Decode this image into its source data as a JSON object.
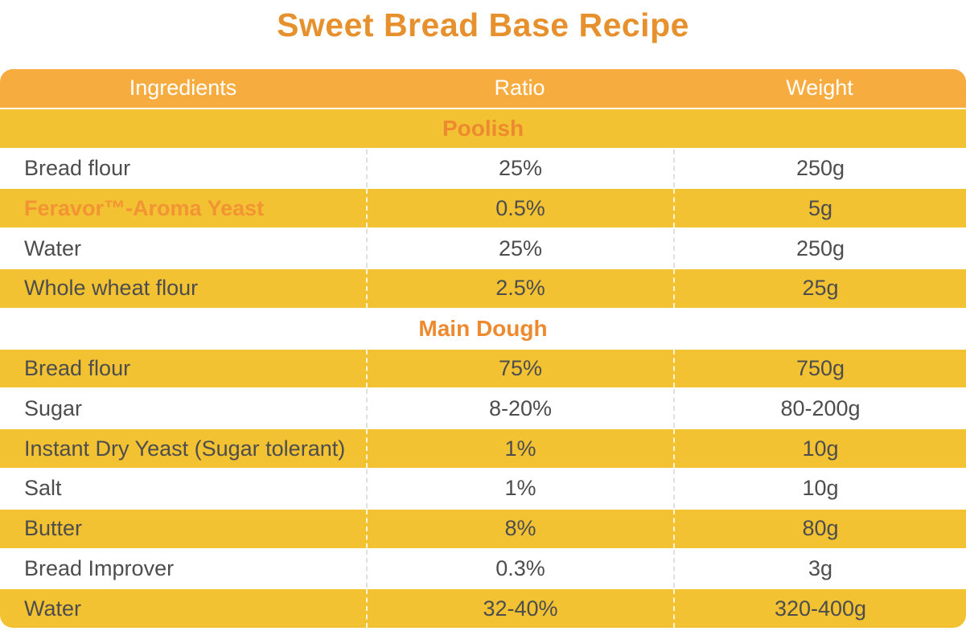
{
  "title": "Sweet Bread Base Recipe",
  "colors": {
    "header_bg": "#F7AC40",
    "row_yellow": "#F2C233",
    "row_white": "#FFFFFF",
    "title_orange": "#E6912E",
    "section_orange": "#ED8A2F",
    "brand_orange": "#F29433",
    "text_dark": "#4D4D4D"
  },
  "table": {
    "headers": [
      "Ingredients",
      "Ratio",
      "Weight"
    ],
    "sections": [
      {
        "name": "Poolish",
        "rows": [
          {
            "ingredient": "Bread flour",
            "ratio": "25%",
            "weight": "250g",
            "highlight": false
          },
          {
            "ingredient": "Feravor™-Aroma Yeast",
            "ratio": "0.5%",
            "weight": "5g",
            "highlight": true
          },
          {
            "ingredient": "Water",
            "ratio": "25%",
            "weight": "250g",
            "highlight": false
          },
          {
            "ingredient": "Whole wheat flour",
            "ratio": "2.5%",
            "weight": "25g",
            "highlight": false
          }
        ]
      },
      {
        "name": "Main Dough",
        "rows": [
          {
            "ingredient": "Bread flour",
            "ratio": "75%",
            "weight": "750g",
            "highlight": false
          },
          {
            "ingredient": "Sugar",
            "ratio": "8-20%",
            "weight": "80-200g",
            "highlight": false
          },
          {
            "ingredient": "Instant Dry Yeast (Sugar tolerant)",
            "ratio": "1%",
            "weight": "10g",
            "highlight": false
          },
          {
            "ingredient": "Salt",
            "ratio": "1%",
            "weight": "10g",
            "highlight": false
          },
          {
            "ingredient": "Butter",
            "ratio": "8%",
            "weight": "80g",
            "highlight": false
          },
          {
            "ingredient": "Bread Improver",
            "ratio": "0.3%",
            "weight": "3g",
            "highlight": false
          },
          {
            "ingredient": "Water",
            "ratio": "32-40%",
            "weight": "320-400g",
            "highlight": false
          }
        ]
      }
    ]
  }
}
